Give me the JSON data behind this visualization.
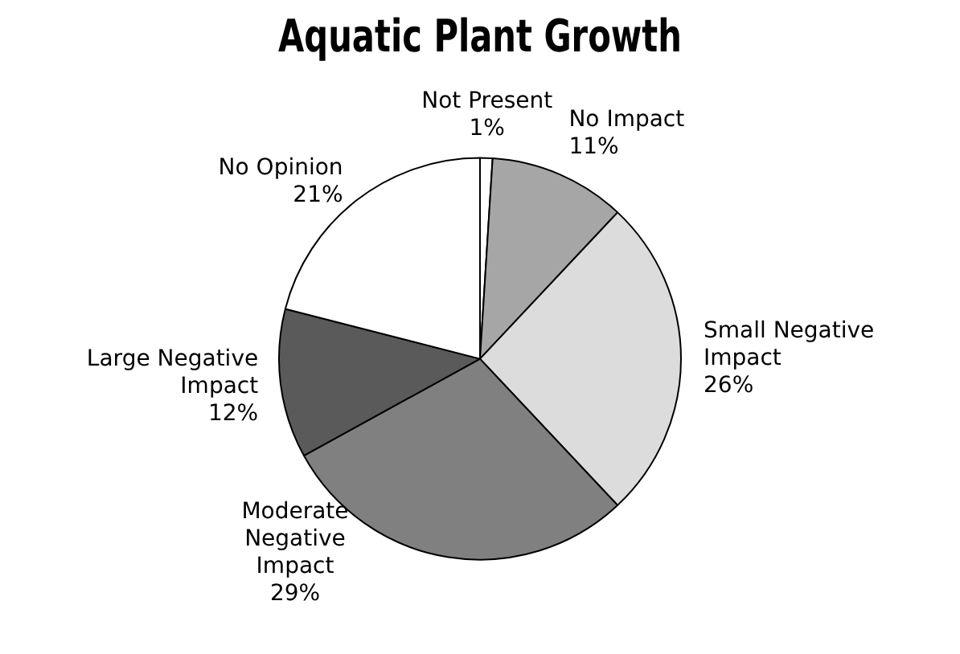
{
  "chart_data": {
    "type": "pie",
    "title": "Aquatic Plant Growth",
    "categories": [
      "Not Present",
      "No Impact",
      "Small Negative Impact",
      "Moderate Negative Impact",
      "Large Negative Impact",
      "No Opinion"
    ],
    "values": [
      1,
      11,
      26,
      29,
      12,
      21
    ],
    "value_labels": [
      "1%",
      "11%",
      "26%",
      "29%",
      "12%",
      "21%"
    ],
    "colors": [
      "#ffffff",
      "#a6a6a6",
      "#dcdcdc",
      "#808080",
      "#5a5a5a",
      "#ffffff"
    ],
    "legend": false
  }
}
